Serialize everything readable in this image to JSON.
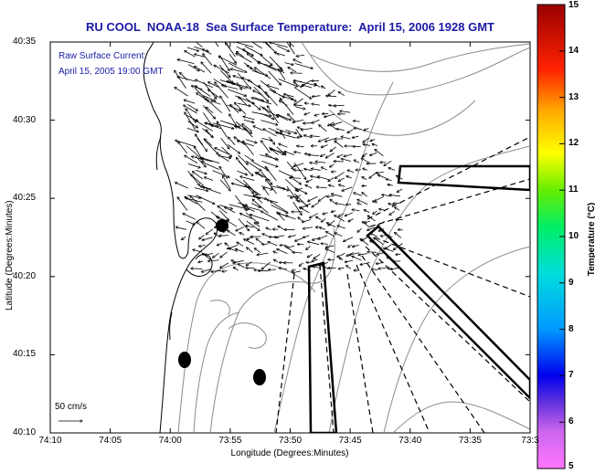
{
  "title": "RU COOL  NOAA-18  Sea Surface Temperature:  April 15, 2006 1928 GMT",
  "annotation": {
    "line1": "Raw Surface Current:",
    "line2": "April 15, 2005 19:00 GMT"
  },
  "scale_label": "50 cm/s",
  "xlabel": "Longitude (Degrees:Minutes)",
  "ylabel": "Latitude (Degrees:Minutes)",
  "colorbar_label": "Temperature (°C)",
  "x_ticks": [
    "74:10",
    "74:05",
    "74:00",
    "73:55",
    "73:50",
    "73:45",
    "73:40",
    "73:35",
    "73:3"
  ],
  "y_ticks": [
    "40:35",
    "40:30",
    "40:25",
    "40:20",
    "40:15",
    "40:10"
  ],
  "colorbar_ticks": [
    "15",
    "14",
    "13",
    "12",
    "11",
    "10",
    "9",
    "8",
    "7",
    "6",
    "5"
  ],
  "colors": {
    "title": "#1a1aa6",
    "coast": "#000000",
    "bathymetry": "#8c8c8c",
    "vectors": "#000000"
  }
}
